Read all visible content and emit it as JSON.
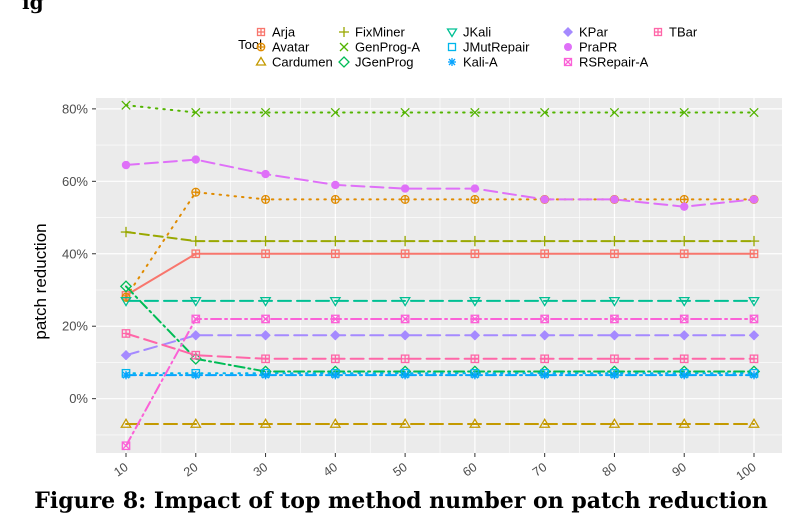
{
  "cut_heading": "ig",
  "caption": "Figure 8: Impact of top method number on patch reduction",
  "chart_data": {
    "type": "line",
    "title": "",
    "xlabel": "",
    "ylabel": "patch  reduction",
    "legend_title": "Tool",
    "legend_position": "top",
    "x": [
      10,
      20,
      30,
      40,
      50,
      60,
      70,
      80,
      90,
      100
    ],
    "xlim": [
      10,
      100
    ],
    "ylim": [
      -15,
      83
    ],
    "yticks": [
      0,
      20,
      40,
      60,
      80
    ],
    "ytick_labels": [
      "0%",
      "20%",
      "40%",
      "60%",
      "80%"
    ],
    "xtick_labels": [
      "10",
      "20",
      "30",
      "40",
      "50",
      "60",
      "70",
      "80",
      "90",
      "100"
    ],
    "grid": true,
    "panel_background": "#ebebeb",
    "series": [
      {
        "name": "Arja",
        "color": "#F8766D",
        "dash": "solid",
        "marker": "square-cross",
        "values": [
          28.5,
          40,
          40,
          40,
          40,
          40,
          40,
          40,
          40,
          40
        ]
      },
      {
        "name": "Avatar",
        "color": "#E08B00",
        "dash": "dotted",
        "marker": "circle-plus",
        "values": [
          28,
          57,
          55,
          55,
          55,
          55,
          55,
          55,
          55,
          55
        ]
      },
      {
        "name": "Cardumen",
        "color": "#C49A00",
        "dash": "dashed-long",
        "marker": "triangle",
        "values": [
          -7,
          -7,
          -7,
          -7,
          -7,
          -7,
          -7,
          -7,
          -7,
          -7
        ]
      },
      {
        "name": "FixMiner",
        "color": "#99A800",
        "dash": "dashed",
        "marker": "plus",
        "values": [
          46,
          43.5,
          43.5,
          43.5,
          43.5,
          43.5,
          43.5,
          43.5,
          43.5,
          43.5
        ]
      },
      {
        "name": "GenProg-A",
        "color": "#53B400",
        "dash": "dotted",
        "marker": "cross",
        "values": [
          81,
          79,
          79,
          79,
          79,
          79,
          79,
          79,
          79,
          79
        ]
      },
      {
        "name": "JGenProg",
        "color": "#00BC56",
        "dash": "dotdash",
        "marker": "diamond",
        "values": [
          31,
          11,
          7.5,
          7.5,
          7.5,
          7.5,
          7.5,
          7.5,
          7.5,
          7.5
        ]
      },
      {
        "name": "JKali",
        "color": "#00C094",
        "dash": "dashed-long",
        "marker": "triangle-down",
        "values": [
          27,
          27,
          27,
          27,
          27,
          27,
          27,
          27,
          27,
          27
        ]
      },
      {
        "name": "JMutRepair",
        "color": "#00B6EB",
        "dash": "dotted",
        "marker": "square",
        "values": [
          7,
          7,
          7,
          7,
          7,
          7,
          7,
          7,
          7,
          7
        ]
      },
      {
        "name": "Kali-A",
        "color": "#06A4FF",
        "dash": "dotdash",
        "marker": "asterisk",
        "values": [
          6.5,
          6.5,
          6.5,
          6.5,
          6.5,
          6.5,
          6.5,
          6.5,
          6.5,
          6.5
        ]
      },
      {
        "name": "KPar",
        "color": "#A58AFF",
        "dash": "dashed-long",
        "marker": "diamond-filled",
        "values": [
          12,
          17.5,
          17.5,
          17.5,
          17.5,
          17.5,
          17.5,
          17.5,
          17.5,
          17.5
        ]
      },
      {
        "name": "PraPR",
        "color": "#DF70F8",
        "dash": "dashed-long",
        "marker": "circle-filled",
        "values": [
          64.5,
          66,
          62,
          59,
          58,
          58,
          55,
          55,
          53,
          55
        ]
      },
      {
        "name": "RSRepair-A",
        "color": "#FB61D7",
        "dash": "dotdash",
        "marker": "square-x",
        "values": [
          -13,
          22,
          22,
          22,
          22,
          22,
          22,
          22,
          22,
          22
        ]
      },
      {
        "name": "TBar",
        "color": "#FF66A8",
        "dash": "dashed-long",
        "marker": "square-plus",
        "values": [
          18,
          12,
          11,
          11,
          11,
          11,
          11,
          11,
          11,
          11
        ]
      }
    ]
  }
}
